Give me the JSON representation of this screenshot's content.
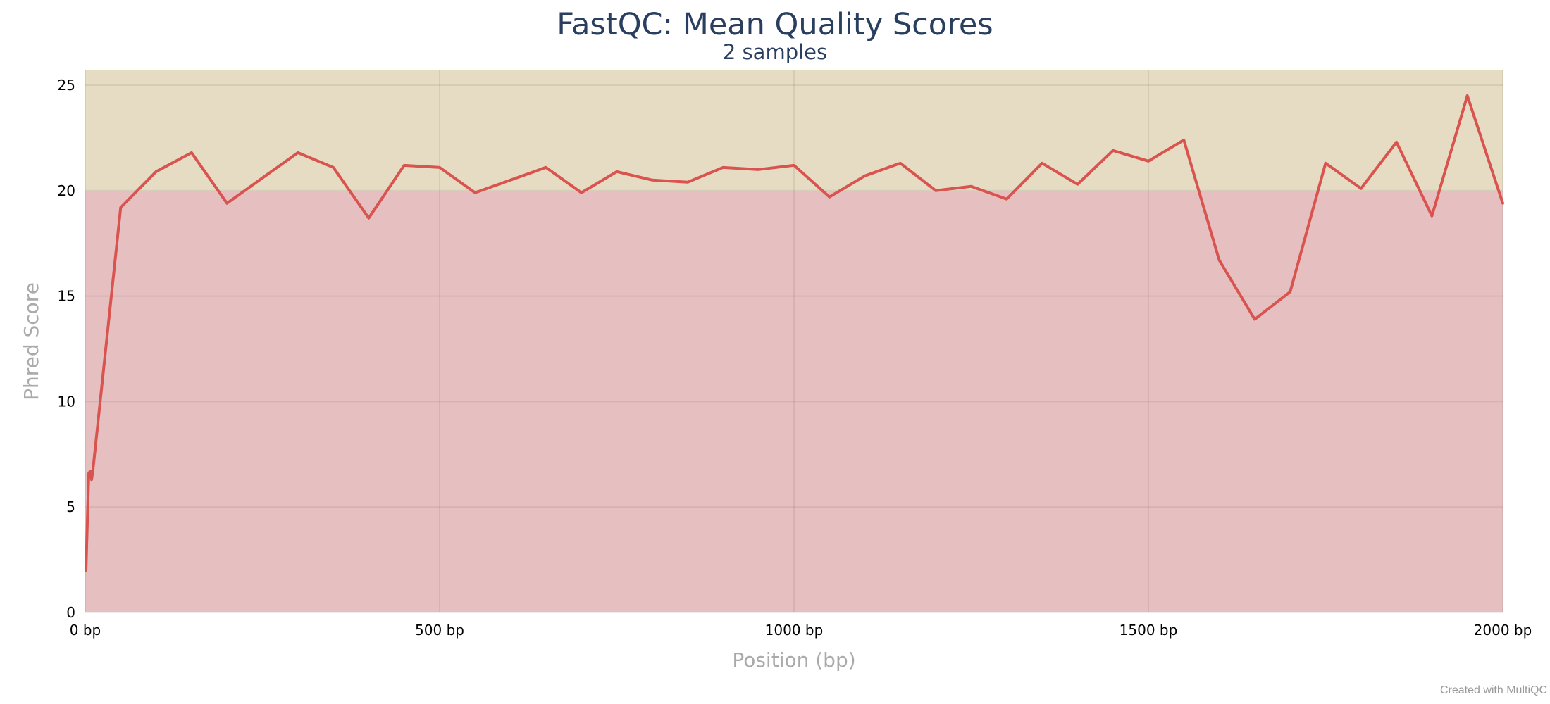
{
  "chart_data": {
    "type": "line",
    "title": "FastQC: Mean Quality Scores",
    "subtitle": "2 samples",
    "xlabel": "Position (bp)",
    "ylabel": "Phred Score",
    "xlim": [
      0,
      2000
    ],
    "ylim": [
      0,
      25.7
    ],
    "x_ticks": [
      {
        "value": 0,
        "label": "0 bp"
      },
      {
        "value": 500,
        "label": "500 bp"
      },
      {
        "value": 1000,
        "label": "1000 bp"
      },
      {
        "value": 1500,
        "label": "1500 bp"
      },
      {
        "value": 2000,
        "label": "2000 bp"
      }
    ],
    "y_ticks": [
      {
        "value": 0,
        "label": "0"
      },
      {
        "value": 5,
        "label": "5"
      },
      {
        "value": 10,
        "label": "10"
      },
      {
        "value": 15,
        "label": "15"
      },
      {
        "value": 20,
        "label": "20"
      },
      {
        "value": 25,
        "label": "25"
      }
    ],
    "grid": true,
    "bands": [
      {
        "from": 0,
        "to": 20,
        "color": "#e6c0c1"
      },
      {
        "from": 20,
        "to": 25.7,
        "color": "#e6dcc4"
      }
    ],
    "series": [
      {
        "color": "#d9534f",
        "points": [
          [
            1,
            2.0
          ],
          [
            5,
            6.6
          ],
          [
            7,
            6.7
          ],
          [
            9,
            6.3
          ],
          [
            11,
            6.8
          ],
          [
            50,
            19.2
          ],
          [
            100,
            20.9
          ],
          [
            150,
            21.8
          ],
          [
            200,
            19.4
          ],
          [
            250,
            20.6
          ],
          [
            300,
            21.8
          ],
          [
            350,
            21.1
          ],
          [
            400,
            18.7
          ],
          [
            450,
            21.2
          ],
          [
            500,
            21.1
          ],
          [
            550,
            19.9
          ],
          [
            600,
            20.5
          ],
          [
            650,
            21.1
          ],
          [
            700,
            19.9
          ],
          [
            750,
            20.9
          ],
          [
            800,
            20.5
          ],
          [
            850,
            20.4
          ],
          [
            900,
            21.1
          ],
          [
            950,
            21.0
          ],
          [
            1000,
            21.2
          ],
          [
            1050,
            19.7
          ],
          [
            1100,
            20.7
          ],
          [
            1150,
            21.3
          ],
          [
            1200,
            20.0
          ],
          [
            1250,
            20.2
          ],
          [
            1300,
            19.6
          ],
          [
            1350,
            21.3
          ],
          [
            1400,
            20.3
          ],
          [
            1450,
            21.9
          ],
          [
            1500,
            21.4
          ],
          [
            1550,
            22.4
          ],
          [
            1600,
            16.7
          ],
          [
            1650,
            13.9
          ],
          [
            1700,
            15.2
          ],
          [
            1750,
            21.3
          ],
          [
            1800,
            20.1
          ],
          [
            1850,
            22.3
          ],
          [
            1900,
            18.8
          ],
          [
            1950,
            24.5
          ],
          [
            2000,
            19.4
          ]
        ]
      }
    ],
    "credit": "Created with MultiQC"
  }
}
